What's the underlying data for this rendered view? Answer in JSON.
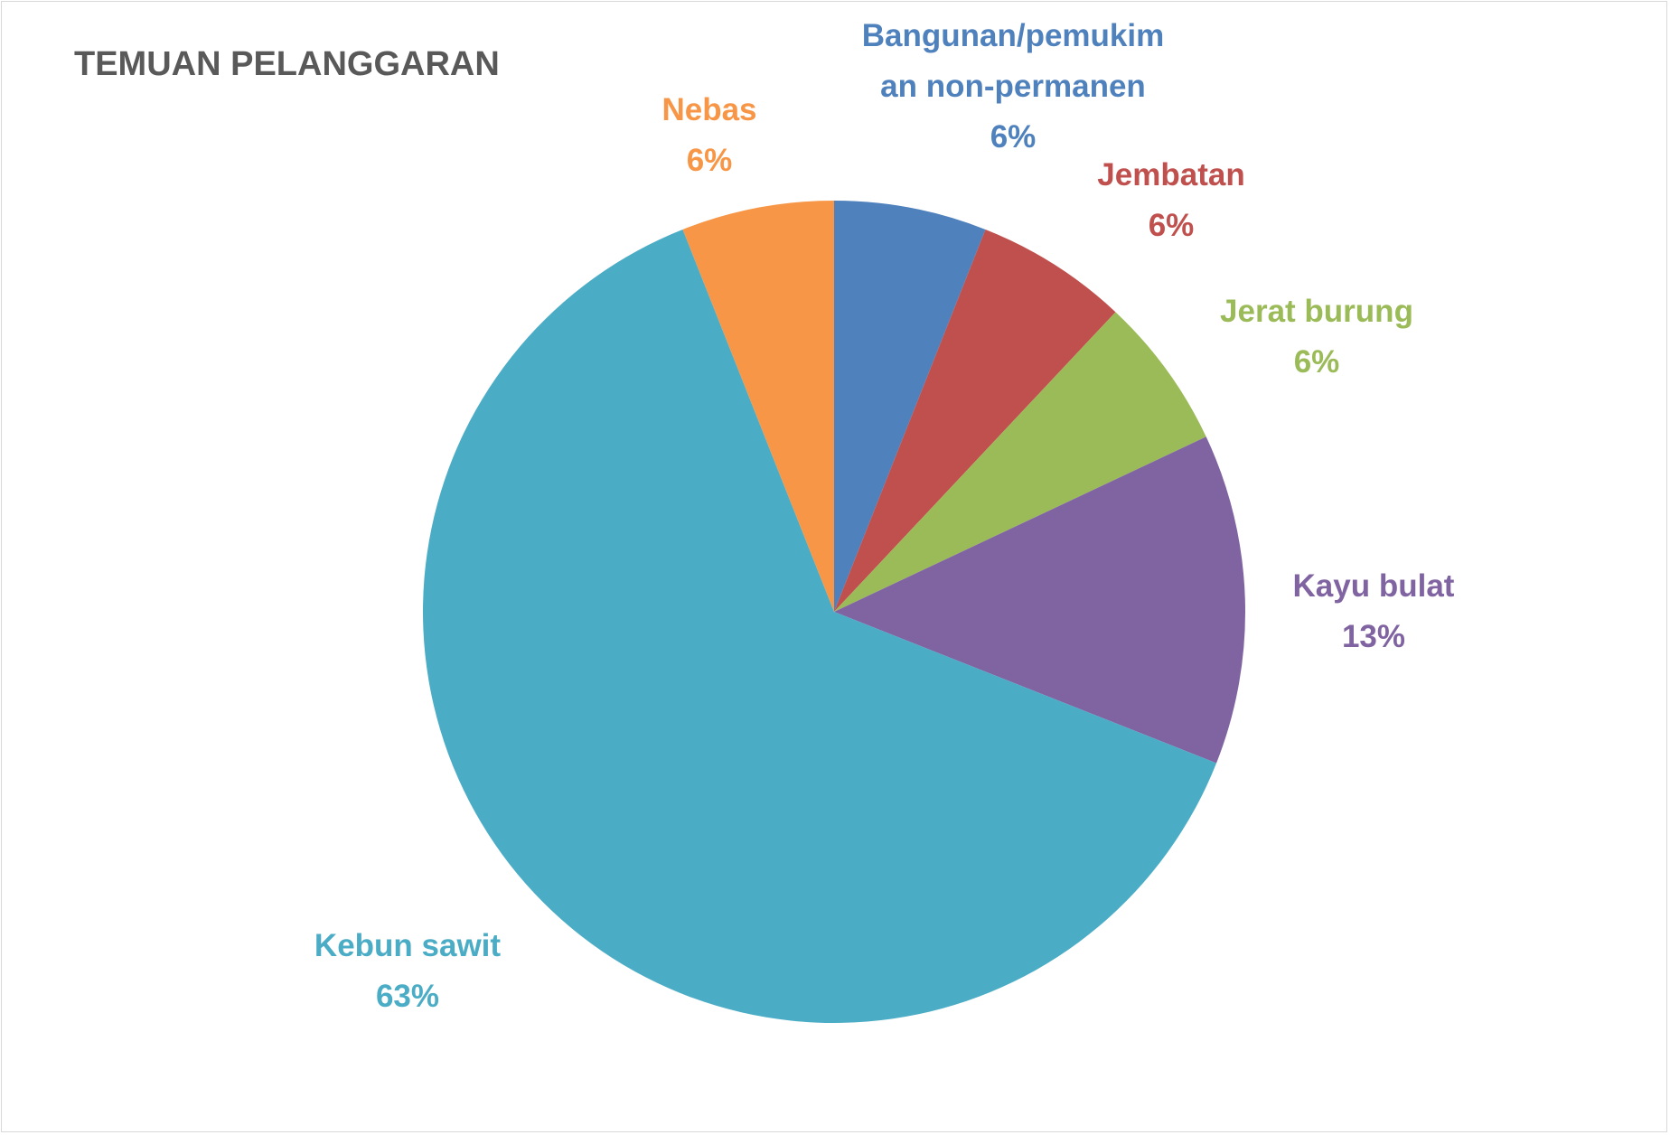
{
  "chart_data": {
    "type": "pie",
    "title": "TEMUAN PELANGGARAN",
    "categories": [
      "Bangunan/pemukiman non-permanen",
      "Jembatan",
      "Jerat burung",
      "Kayu bulat",
      "Kebun sawit",
      "Nebas"
    ],
    "values": [
      6,
      6,
      6,
      13,
      63,
      6
    ],
    "value_labels": [
      "6%",
      "6%",
      "6%",
      "13%",
      "63%",
      "6%"
    ],
    "colors": [
      "#4f81bd",
      "#c0504d",
      "#9bbb59",
      "#8064a2",
      "#4bacc6",
      "#f79646"
    ]
  }
}
